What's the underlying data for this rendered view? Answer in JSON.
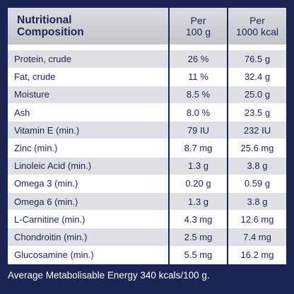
{
  "header": {
    "title_line1": "Nutritional",
    "title_line2": "Composition",
    "col1_line1": "Per",
    "col1_line2": "100 g",
    "col2_line1": "Per",
    "col2_line2": "1000 kcal"
  },
  "rows": [
    {
      "name": "Protein, crude",
      "per100g": "26 %",
      "per1000kcal": "76.5 g"
    },
    {
      "name": "Fat, crude",
      "per100g": "11 %",
      "per1000kcal": "32.4 g"
    },
    {
      "name": "Moisture",
      "per100g": "8.5 %",
      "per1000kcal": "25.0 g"
    },
    {
      "name": "Ash",
      "per100g": "8.0 %",
      "per1000kcal": "23.5 g"
    },
    {
      "name": "Vitamin E (min.)",
      "per100g": "79 IU",
      "per1000kcal": "232 IU"
    },
    {
      "name": "Zinc (min.)",
      "per100g": "8.7 mg",
      "per1000kcal": "25.6 mg"
    },
    {
      "name": "Linoleic Acid (min.)",
      "per100g": "1.3 g",
      "per1000kcal": "3.8 g"
    },
    {
      "name": "Omega 3 (min.)",
      "per100g": "0.20 g",
      "per1000kcal": "0.59 g"
    },
    {
      "name": "Omega 6 (min.)",
      "per100g": "1.3 g",
      "per1000kcal": "3.8 g"
    },
    {
      "name": "L-Carnitine (min.)",
      "per100g": "4.3 mg",
      "per1000kcal": "12.6 mg"
    },
    {
      "name": "Chondroitin (min.)",
      "per100g": "2.5 mg",
      "per1000kcal": "7.4 mg"
    },
    {
      "name": "Glucosamine (min.)",
      "per100g": "5.5 mg",
      "per1000kcal": "16.2 mg"
    }
  ],
  "footnote": "Average Metabolisable Energy 340 kcals/100 g.",
  "colors": {
    "background": "#1b2553",
    "header_band": "#c9cad0",
    "stripe": "#dfe0e6",
    "text": "#1b2553"
  }
}
